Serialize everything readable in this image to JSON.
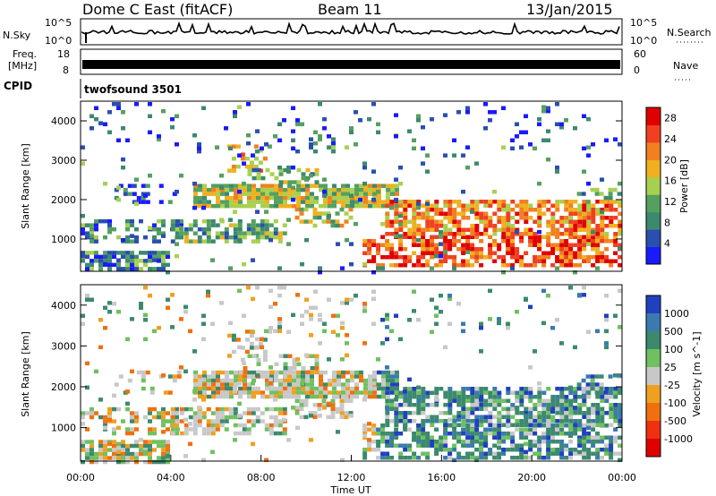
{
  "header": {
    "station": "Dome C East (fitACF)",
    "beam": "Beam 11",
    "date": "13/Jan/2015"
  },
  "top_panels": {
    "nsky_label": "N.Sky",
    "nsky_ticks": [
      "10^5",
      "10^0"
    ],
    "nsearch_label": "N.Search",
    "nsearch_ticks": [
      "10^5",
      "10^0"
    ],
    "freq_label_1": "Freq.",
    "freq_label_2": "[MHz]",
    "freq_ticks": [
      "18",
      "8"
    ],
    "nave_label": "Nave",
    "nave_ticks": [
      "60",
      "0"
    ],
    "cpid_label": "CPID",
    "cpid_value": "twofsound 3501"
  },
  "colors": {
    "power_scale": [
      "#1a1aff",
      "#2a4fb0",
      "#3c8a6e",
      "#55a060",
      "#a8d050",
      "#f0b020",
      "#f08020",
      "#f04020",
      "#e00000"
    ],
    "velocity_scale": [
      "#2040c0",
      "#3a7ab0",
      "#3c8a6e",
      "#70c060",
      "#c8c8c8",
      "#f0a020",
      "#f07010",
      "#f03010",
      "#e00000"
    ]
  },
  "chart_data": [
    {
      "type": "heatmap",
      "name": "power",
      "xlabel": "",
      "ylabel": "Slant Range [km]",
      "x_ticks": [
        "00:00",
        "04:00",
        "08:00",
        "12:00",
        "16:00",
        "20:00",
        "00:00"
      ],
      "x_range_hours": [
        0,
        24
      ],
      "ylim": [
        180,
        4500
      ],
      "y_ticks": [
        1000,
        2000,
        3000,
        4000
      ],
      "colorbar_label": "Power [dB]",
      "colorbar_ticks": [
        4,
        8,
        12,
        16,
        20,
        24,
        28
      ],
      "colorbar_range": [
        0,
        30
      ]
    },
    {
      "type": "heatmap",
      "name": "velocity",
      "xlabel": "Time UT",
      "ylabel": "Slant Range [km]",
      "x_ticks": [
        "00:00",
        "04:00",
        "08:00",
        "12:00",
        "16:00",
        "20:00",
        "00:00"
      ],
      "x_range_hours": [
        0,
        24
      ],
      "ylim": [
        180,
        4500
      ],
      "y_ticks": [
        1000,
        2000,
        3000,
        4000
      ],
      "colorbar_label": "Velocity [m s^-1]",
      "colorbar_ticks": [
        "1000",
        "500",
        "100",
        "25",
        "-25",
        "-100",
        "-500",
        "-1000"
      ]
    }
  ]
}
